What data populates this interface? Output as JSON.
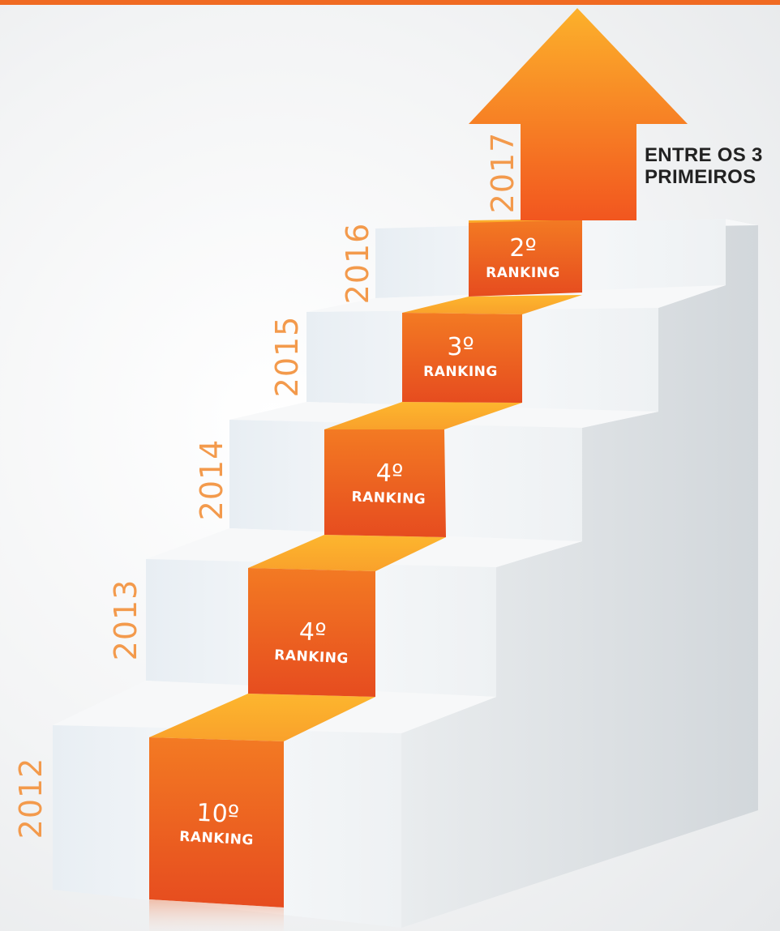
{
  "colors": {
    "accent": "#f26b21",
    "accent_light": "#fba92a",
    "accent_dark": "#e84e1c",
    "year_text": "#f39a4c",
    "stair_front": "#eef2f5",
    "stair_side": "#dde1e4",
    "stair_top": "#f8f9fa"
  },
  "steps": [
    {
      "year": "2012",
      "rank": "10º",
      "label": "RANKING"
    },
    {
      "year": "2013",
      "rank": "4º",
      "label": "RANKING"
    },
    {
      "year": "2014",
      "rank": "4º",
      "label": "RANKING"
    },
    {
      "year": "2015",
      "rank": "3º",
      "label": "RANKING"
    },
    {
      "year": "2016",
      "rank": "2º",
      "label": "RANKING"
    }
  ],
  "goal": {
    "year": "2017",
    "line1": "ENTRE OS 3",
    "line2": "PRIMEIROS"
  }
}
